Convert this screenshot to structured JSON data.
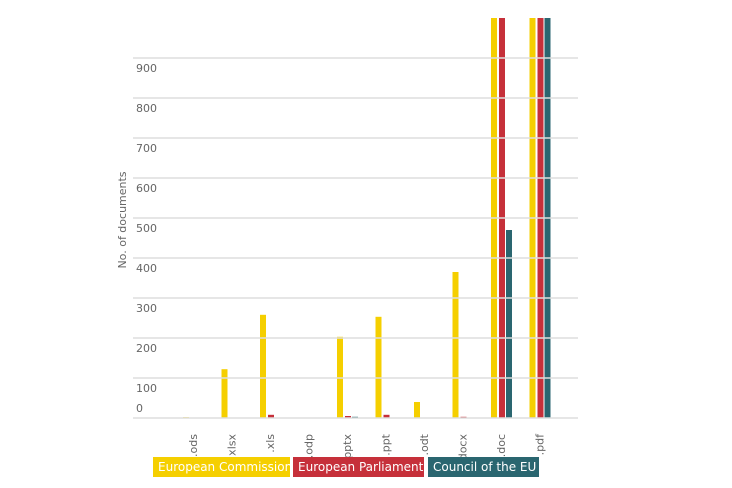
{
  "chart_data": {
    "type": "bar",
    "y_label": "No. of documents",
    "categories": [
      ".ods",
      ".xlsx",
      ".xls",
      ".odp",
      ".pptx",
      ".ppt",
      ".odt",
      ".docx",
      ".doc",
      ".pdf"
    ],
    "series": [
      {
        "name": "European Commission",
        "color": "#f5cf00",
        "values": [
          2,
          122,
          258,
          0,
          203,
          253,
          40,
          365,
          1000,
          1000
        ]
      },
      {
        "name": "European Parliament",
        "color": "#c6303a",
        "values": [
          0,
          0,
          8,
          0,
          5,
          8,
          0,
          3,
          1000,
          1000
        ]
      },
      {
        "name": "Council of the EU",
        "color": "#2a6670",
        "values": [
          0,
          0,
          0,
          0,
          3,
          0,
          0,
          0,
          470,
          1000
        ]
      }
    ],
    "ylim": [
      0,
      1000
    ],
    "yticks": [
      0,
      100,
      200,
      300,
      400,
      500,
      600,
      700,
      800,
      900
    ],
    "grid": true
  }
}
